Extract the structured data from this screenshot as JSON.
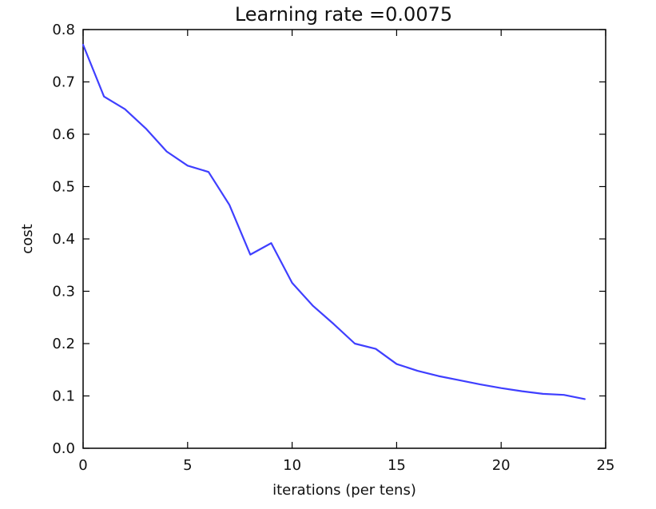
{
  "chart_data": {
    "type": "line",
    "title": "Learning rate =0.0075",
    "xlabel": "iterations (per tens)",
    "ylabel": "cost",
    "xlim": [
      0,
      25
    ],
    "ylim": [
      0.0,
      0.8
    ],
    "x_ticks": [
      "0",
      "5",
      "10",
      "15",
      "20",
      "25"
    ],
    "y_ticks": [
      "0.0",
      "0.1",
      "0.2",
      "0.3",
      "0.4",
      "0.5",
      "0.6",
      "0.7",
      "0.8"
    ],
    "grid": false,
    "legend": "none",
    "series": [
      {
        "color": "#3f3fff",
        "x": [
          0,
          1,
          2,
          3,
          4,
          5,
          6,
          7,
          8,
          9,
          10,
          11,
          12,
          13,
          14,
          15,
          16,
          17,
          18,
          19,
          20,
          21,
          22,
          23,
          24
        ],
        "y": [
          0.771,
          0.672,
          0.648,
          0.611,
          0.567,
          0.54,
          0.528,
          0.465,
          0.37,
          0.392,
          0.316,
          0.272,
          0.237,
          0.2,
          0.19,
          0.161,
          0.148,
          0.138,
          0.13,
          0.122,
          0.115,
          0.109,
          0.104,
          0.102,
          0.094
        ]
      }
    ]
  }
}
